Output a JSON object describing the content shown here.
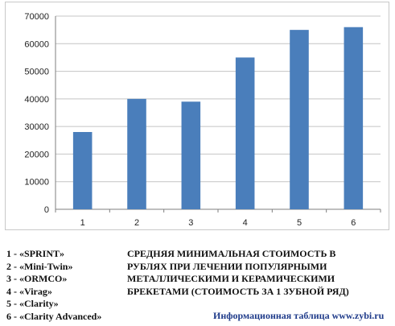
{
  "colors": {
    "bar": "#4a7ebb",
    "grid": "#c4c4c4",
    "axis": "#7f7f7f",
    "source_text": "#1f3b8a"
  },
  "chart_data": {
    "type": "bar",
    "categories": [
      "1",
      "2",
      "3",
      "4",
      "5",
      "6"
    ],
    "values": [
      28000,
      40000,
      39000,
      55000,
      65000,
      66000
    ],
    "ylim": [
      0,
      70000
    ],
    "yticks": [
      "0",
      "10000",
      "20000",
      "30000",
      "40000",
      "50000",
      "60000",
      "70000"
    ],
    "grid": true,
    "legend": "none"
  },
  "legend_items": [
    "1 - «SPRINT»",
    "2 - «Mini-Twin»",
    "3 - «ORMCO»",
    "4 - «Virag»",
    "5 - «Clarity»",
    "6 - «Clarity Advanced»"
  ],
  "caption_lines": [
    "СРЕДНЯЯ МИНИМАЛЬНАЯ СТОИМОСТЬ В",
    "РУБЛЯХ ПРИ ЛЕЧЕНИИ ПОПУЛЯРНЫМИ",
    "МЕТАЛЛИЧЕСКИМИ И КЕРАМИЧЕСКИМИ",
    "БРЕКЕТАМИ (СТОИМОСТЬ ЗА 1 ЗУБНОЙ РЯД)"
  ],
  "source": "Информационная таблица www.zybi.ru"
}
